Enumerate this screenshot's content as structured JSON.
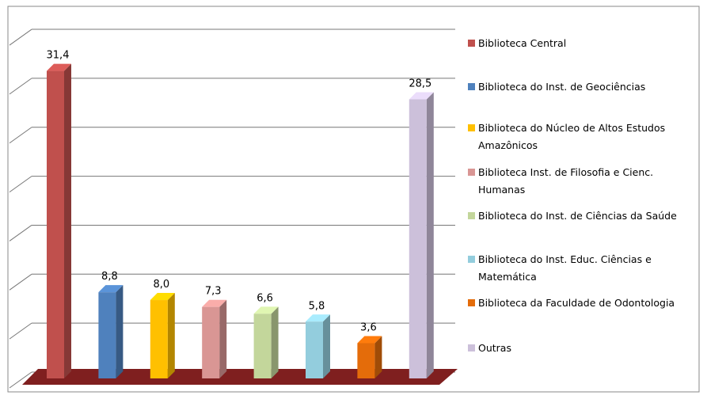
{
  "chart_data": {
    "type": "bar3d",
    "categories": [
      "Biblioteca Central",
      "Biblioteca do Inst. de Geociências",
      "Biblioteca do Núcleo  de Altos Estudos Amazônicos",
      "Biblioteca  Inst. de Filosofia e Cienc. Humanas",
      "Biblioteca do Inst. de Ciências da Saúde",
      "Biblioteca do Inst. Educ. Ciências e Matemática",
      "Biblioteca da Faculdade de Odontologia",
      "Outras"
    ],
    "values": [
      31.4,
      8.8,
      8.0,
      7.3,
      6.6,
      5.8,
      3.6,
      28.5
    ],
    "value_labels": [
      "31,4",
      "8,8",
      "8,0",
      "7,3",
      "6,6",
      "5,8",
      "3,6",
      "28,5"
    ],
    "colors": [
      "#c0504d",
      "#4f81bd",
      "#ffc000",
      "#d99694",
      "#c3d69b",
      "#93cddd",
      "#e46c0a",
      "#ccc0da"
    ],
    "ylim": [
      0,
      35
    ],
    "yticks": [
      0,
      5,
      10,
      15,
      20,
      25,
      30,
      35
    ],
    "grid": true,
    "legend": "right"
  }
}
